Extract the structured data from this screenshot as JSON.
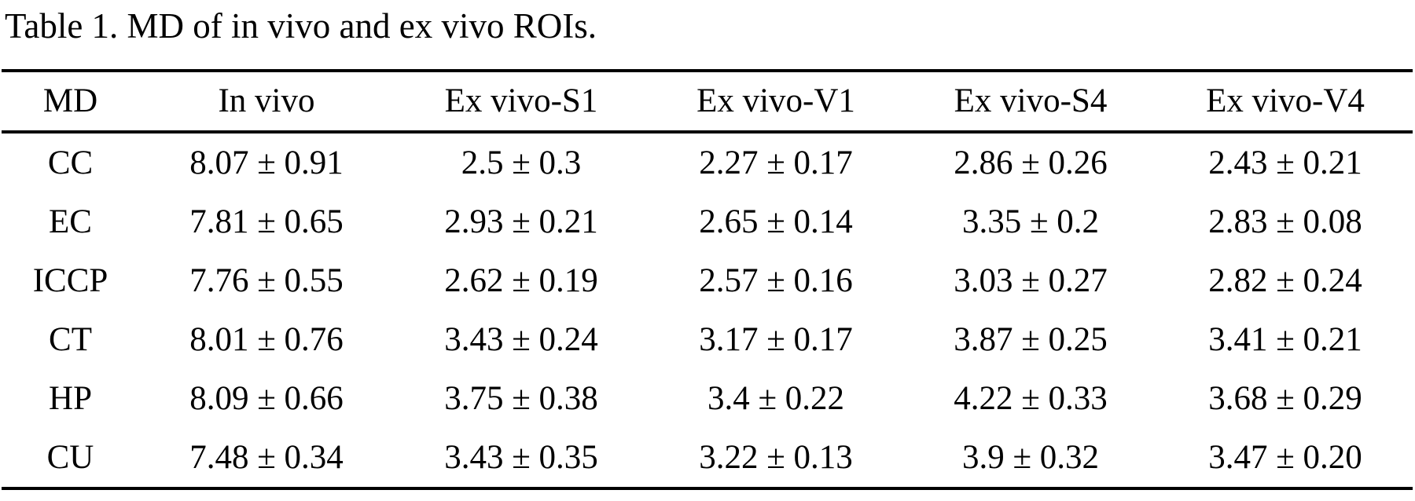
{
  "page": {
    "caption": "Table 1. MD of in vivo and ex vivo ROIs."
  },
  "table": {
    "headers": [
      "MD",
      "In vivo",
      "Ex vivo-S1",
      "Ex vivo-V1",
      "Ex vivo-S4",
      "Ex vivo-V4"
    ],
    "rows": [
      [
        "CC",
        "8.07 ± 0.91",
        "2.5 ± 0.3",
        "2.27 ± 0.17",
        "2.86 ± 0.26",
        "2.43 ± 0.21"
      ],
      [
        "EC",
        "7.81 ± 0.65",
        "2.93 ± 0.21",
        "2.65 ± 0.14",
        "3.35 ± 0.2",
        "2.83 ± 0.08"
      ],
      [
        "ICCP",
        "7.76 ± 0.55",
        "2.62 ± 0.19",
        "2.57 ± 0.16",
        "3.03 ± 0.27",
        "2.82 ± 0.24"
      ],
      [
        "CT",
        "8.01 ± 0.76",
        "3.43 ± 0.24",
        "3.17 ± 0.17",
        "3.87 ± 0.25",
        "3.41 ± 0.21"
      ],
      [
        "HP",
        "8.09 ± 0.66",
        "3.75 ± 0.38",
        "3.4 ± 0.22",
        "4.22 ± 0.33",
        "3.68 ± 0.29"
      ],
      [
        "CU",
        "7.48 ± 0.34",
        "3.43 ± 0.35",
        "3.22 ± 0.13",
        "3.9 ± 0.32",
        "3.47 ± 0.20"
      ]
    ]
  },
  "chart_data": {
    "type": "table",
    "title": "Table 1. MD of in vivo and ex vivo ROIs.",
    "columns": [
      "MD",
      "In vivo",
      "Ex vivo-S1",
      "Ex vivo-V1",
      "Ex vivo-S4",
      "Ex vivo-V4"
    ],
    "row_labels": [
      "CC",
      "EC",
      "ICCP",
      "CT",
      "HP",
      "CU"
    ],
    "series": [
      {
        "name": "In vivo",
        "means": [
          8.07,
          7.81,
          7.76,
          8.01,
          8.09,
          7.48
        ],
        "sds": [
          0.91,
          0.65,
          0.55,
          0.76,
          0.66,
          0.34
        ]
      },
      {
        "name": "Ex vivo-S1",
        "means": [
          2.5,
          2.93,
          2.62,
          3.43,
          3.75,
          3.43
        ],
        "sds": [
          0.3,
          0.21,
          0.19,
          0.24,
          0.38,
          0.35
        ]
      },
      {
        "name": "Ex vivo-V1",
        "means": [
          2.27,
          2.65,
          2.57,
          3.17,
          3.4,
          3.22
        ],
        "sds": [
          0.17,
          0.14,
          0.16,
          0.17,
          0.22,
          0.13
        ]
      },
      {
        "name": "Ex vivo-S4",
        "means": [
          2.86,
          3.35,
          3.03,
          3.87,
          4.22,
          3.9
        ],
        "sds": [
          0.26,
          0.2,
          0.27,
          0.25,
          0.33,
          0.32
        ]
      },
      {
        "name": "Ex vivo-V4",
        "means": [
          2.43,
          2.83,
          2.82,
          3.41,
          3.68,
          3.47
        ],
        "sds": [
          0.21,
          0.08,
          0.24,
          0.21,
          0.29,
          0.2
        ]
      }
    ]
  }
}
